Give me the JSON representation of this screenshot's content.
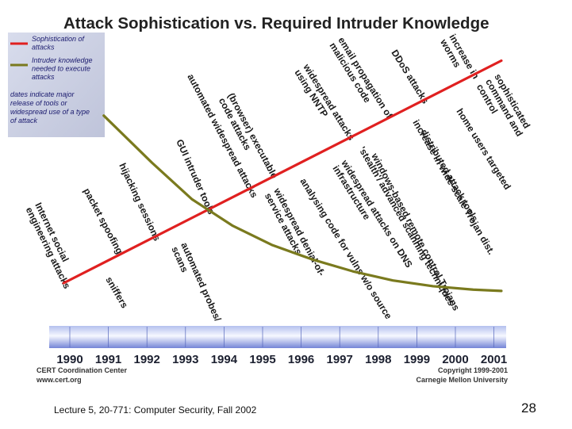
{
  "chart_data": {
    "type": "line",
    "title": "Attack Sophistication vs. Required Intruder Knowledge",
    "x": [
      "1990",
      "1991",
      "1992",
      "1993",
      "1994",
      "1995",
      "1996",
      "1997",
      "1998",
      "1999",
      "2000",
      "2001"
    ],
    "ylim": [
      0,
      10
    ],
    "series": [
      {
        "name": "Sophistication of attacks",
        "color": "#e02020",
        "points": [
          [
            1990.3,
            1.0
          ],
          [
            2001.2,
            9.5
          ]
        ]
      },
      {
        "name": "Intruder knowledge needed to execute attacks",
        "color": "#7a7a1e",
        "points": [
          [
            1991.3,
            7.4
          ],
          [
            1992.5,
            5.6
          ],
          [
            1993.5,
            4.2
          ],
          [
            1994.5,
            3.2
          ],
          [
            1995.5,
            2.45
          ],
          [
            1996.5,
            1.9
          ],
          [
            1997.5,
            1.45
          ],
          [
            1998.5,
            1.1
          ],
          [
            1999.5,
            0.88
          ],
          [
            2000.5,
            0.75
          ],
          [
            2001.2,
            0.7
          ]
        ]
      }
    ],
    "legend": {
      "items": [
        {
          "label_lines": [
            "Sophistication of",
            "attacks"
          ],
          "color": "#e02020"
        },
        {
          "label_lines": [
            "Intruder knowledge",
            "needed to execute",
            "attacks"
          ],
          "color": "#7a7a1e"
        }
      ],
      "note_lines": [
        "dates indicate major",
        "release of  tools or",
        "widespread use of a type",
        "of attack"
      ]
    },
    "annotations": [
      {
        "lines": [
          "Internet social",
          "engineering attacks"
        ],
        "year": 1990.5
      },
      {
        "lines": [
          "packet spoofing"
        ],
        "year": 1991.3
      },
      {
        "lines": [
          "sniffers"
        ],
        "year": 1991.7
      },
      {
        "lines": [
          "hijacking sessions"
        ],
        "year": 1992.3
      },
      {
        "lines": [
          "GUI intruder tools"
        ],
        "year": 1993.3
      },
      {
        "lines": [
          "automated widespread attacks"
        ],
        "year": 1993.4
      },
      {
        "lines": [
          "(browser) executable",
          "code attacks"
        ],
        "year": 1993.8
      },
      {
        "lines": [
          "automated probes/",
          "scans"
        ],
        "year": 1994.2
      },
      {
        "lines": [
          "widespread denial-of-",
          "service attacks"
        ],
        "year": 1995.5
      },
      {
        "lines": [
          "analysing code for vulns w/o source"
        ],
        "year": 1996.0
      },
      {
        "lines": [
          "widespread attacks",
          "using NNTP"
        ],
        "year": 1996.3
      },
      {
        "lines": [
          "widespread attacks on DNS",
          "infrastructure"
        ],
        "year": 1997.0
      },
      {
        "lines": [
          "email propagation of",
          "malicious code"
        ],
        "year": 1997.3
      },
      {
        "lines": [
          "windows-based remote control Trojans"
        ],
        "year": 1997.5
      },
      {
        "lines": [
          "'stealth'/ advanced scanning techniques"
        ],
        "year": 1997.5
      },
      {
        "lines": [
          "DDoS attacks"
        ],
        "year": 1998.2
      },
      {
        "lines": [
          "distributed attack tools"
        ],
        "year": 1999.0
      },
      {
        "lines": [
          "increase in wide-scale Trojan dist."
        ],
        "year": 1999.0
      },
      {
        "lines": [
          "increase in",
          "worms"
        ],
        "year": 2000.0
      },
      {
        "lines": [
          "home users targeted"
        ],
        "year": 2000.0
      },
      {
        "lines": [
          "sophisticated",
          "command and",
          "control"
        ],
        "year": 2001.0
      }
    ]
  },
  "credits": {
    "left_lines": [
      "CERT Coordination Center",
      "www.cert.org"
    ],
    "right_lines": [
      "Copyright 1999-2001",
      "Carnegie Mellon University"
    ]
  },
  "footer": {
    "text": "Lecture 5, 20-771: Computer Security,  Fall 2002",
    "page": "28"
  }
}
